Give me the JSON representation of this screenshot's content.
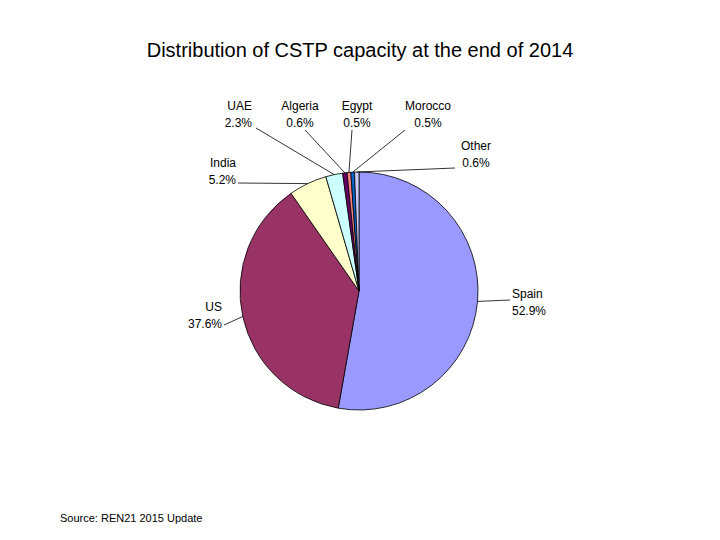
{
  "chart_data": {
    "type": "pie",
    "title": "Distribution of CSTP capacity at the end of 2014",
    "categories": [
      "Spain",
      "US",
      "India",
      "UAE",
      "Algeria",
      "Egypt",
      "Morocco",
      "Other"
    ],
    "values": [
      52.9,
      37.6,
      5.2,
      2.3,
      0.6,
      0.5,
      0.5,
      0.6
    ],
    "value_labels": [
      "52.9%",
      "37.6%",
      "5.2%",
      "2.3%",
      "0.6%",
      "0.5%",
      "0.5%",
      "0.6%"
    ],
    "colors": [
      "#9999ff",
      "#993366",
      "#ffffcc",
      "#ccffff",
      "#660066",
      "#ff8080",
      "#0066cc",
      "#ccccff"
    ],
    "data_labels": true,
    "source": "Source: REN21 2015 Update"
  }
}
